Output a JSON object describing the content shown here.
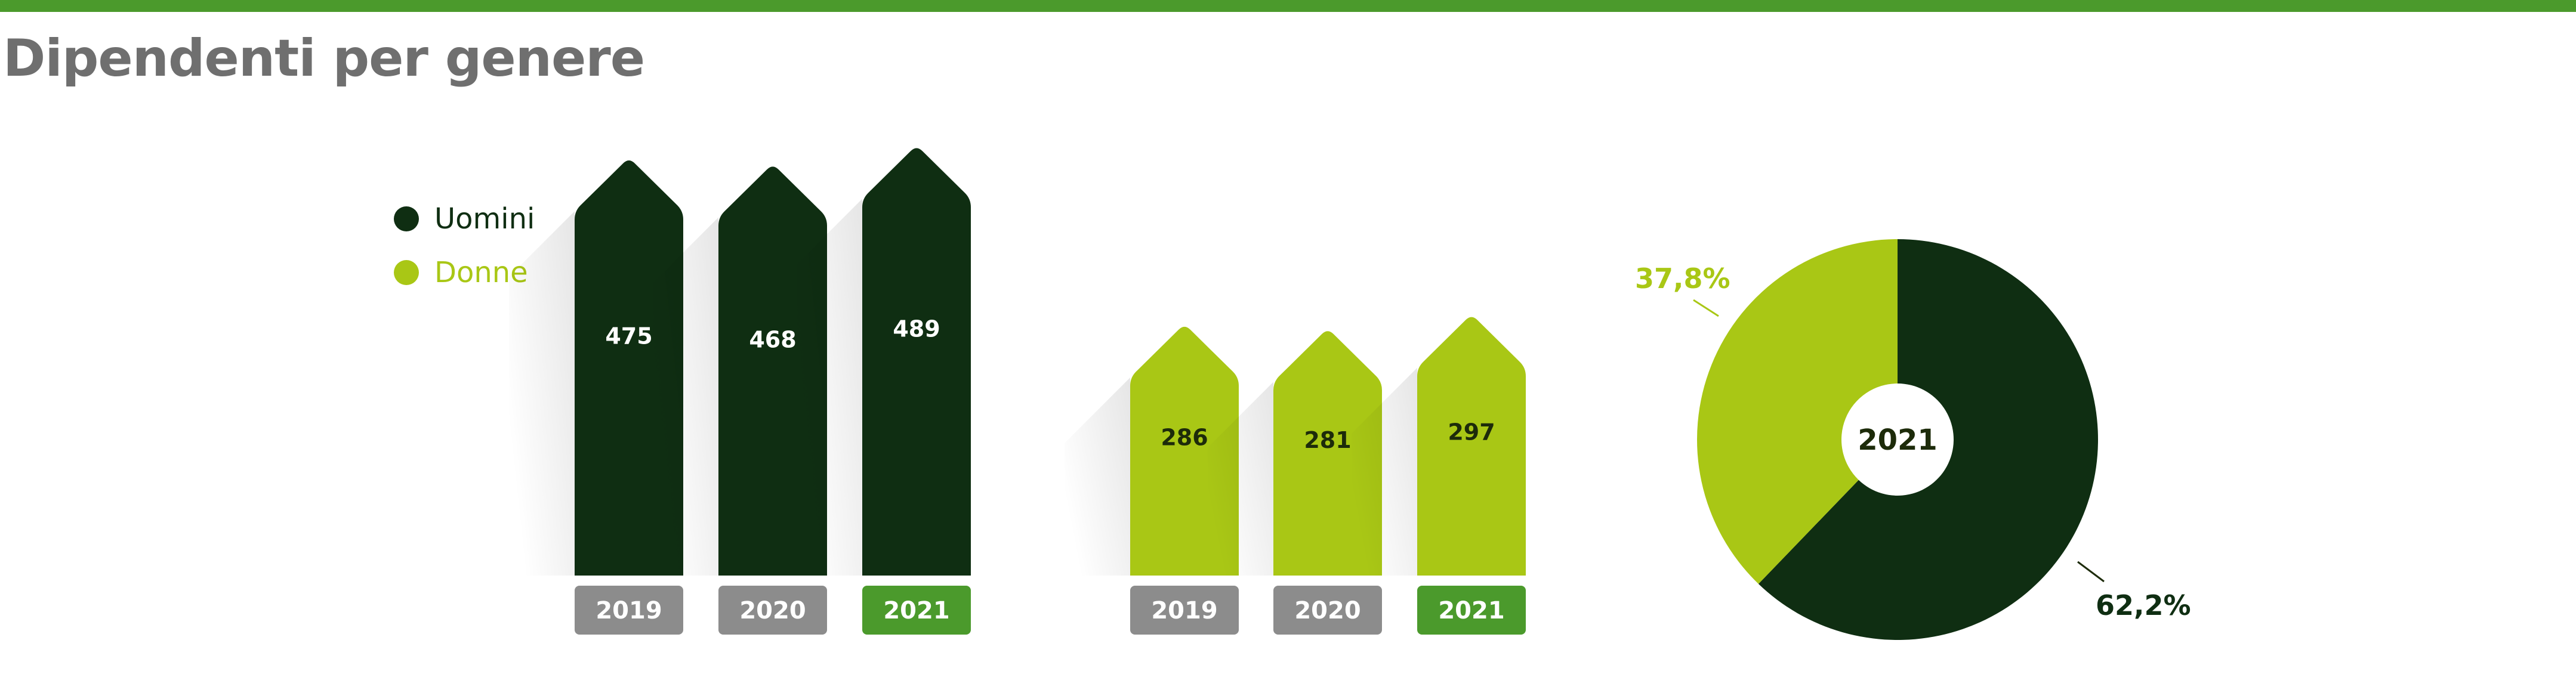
{
  "title": "Dipendenti per genere",
  "colors": {
    "topbar": "#4b9a2c",
    "men": "#0f2e12",
    "women": "#a9c715",
    "year_label_default": "#8c8c8c",
    "year_label_current": "#4b9a2c",
    "title": "#6f6f6f"
  },
  "legend": [
    {
      "label": "Uomini",
      "color": "#0f2e12"
    },
    {
      "label": "Donne",
      "color": "#a9c715"
    }
  ],
  "chart_data": [
    {
      "type": "bar",
      "categories": [
        "2019",
        "2020",
        "2021"
      ],
      "series": [
        {
          "name": "Uomini",
          "values": [
            475,
            468,
            489
          ]
        }
      ],
      "ylim": [
        0,
        500
      ]
    },
    {
      "type": "bar",
      "categories": [
        "2019",
        "2020",
        "2021"
      ],
      "series": [
        {
          "name": "Donne",
          "values": [
            286,
            281,
            297
          ]
        }
      ],
      "ylim": [
        0,
        500
      ]
    },
    {
      "type": "pie",
      "center_label": "2021",
      "slices": [
        {
          "label": "Uomini",
          "value": 62.2,
          "display": "62,2%"
        },
        {
          "label": "Donne",
          "value": 37.8,
          "display": "37,8%"
        }
      ]
    }
  ]
}
